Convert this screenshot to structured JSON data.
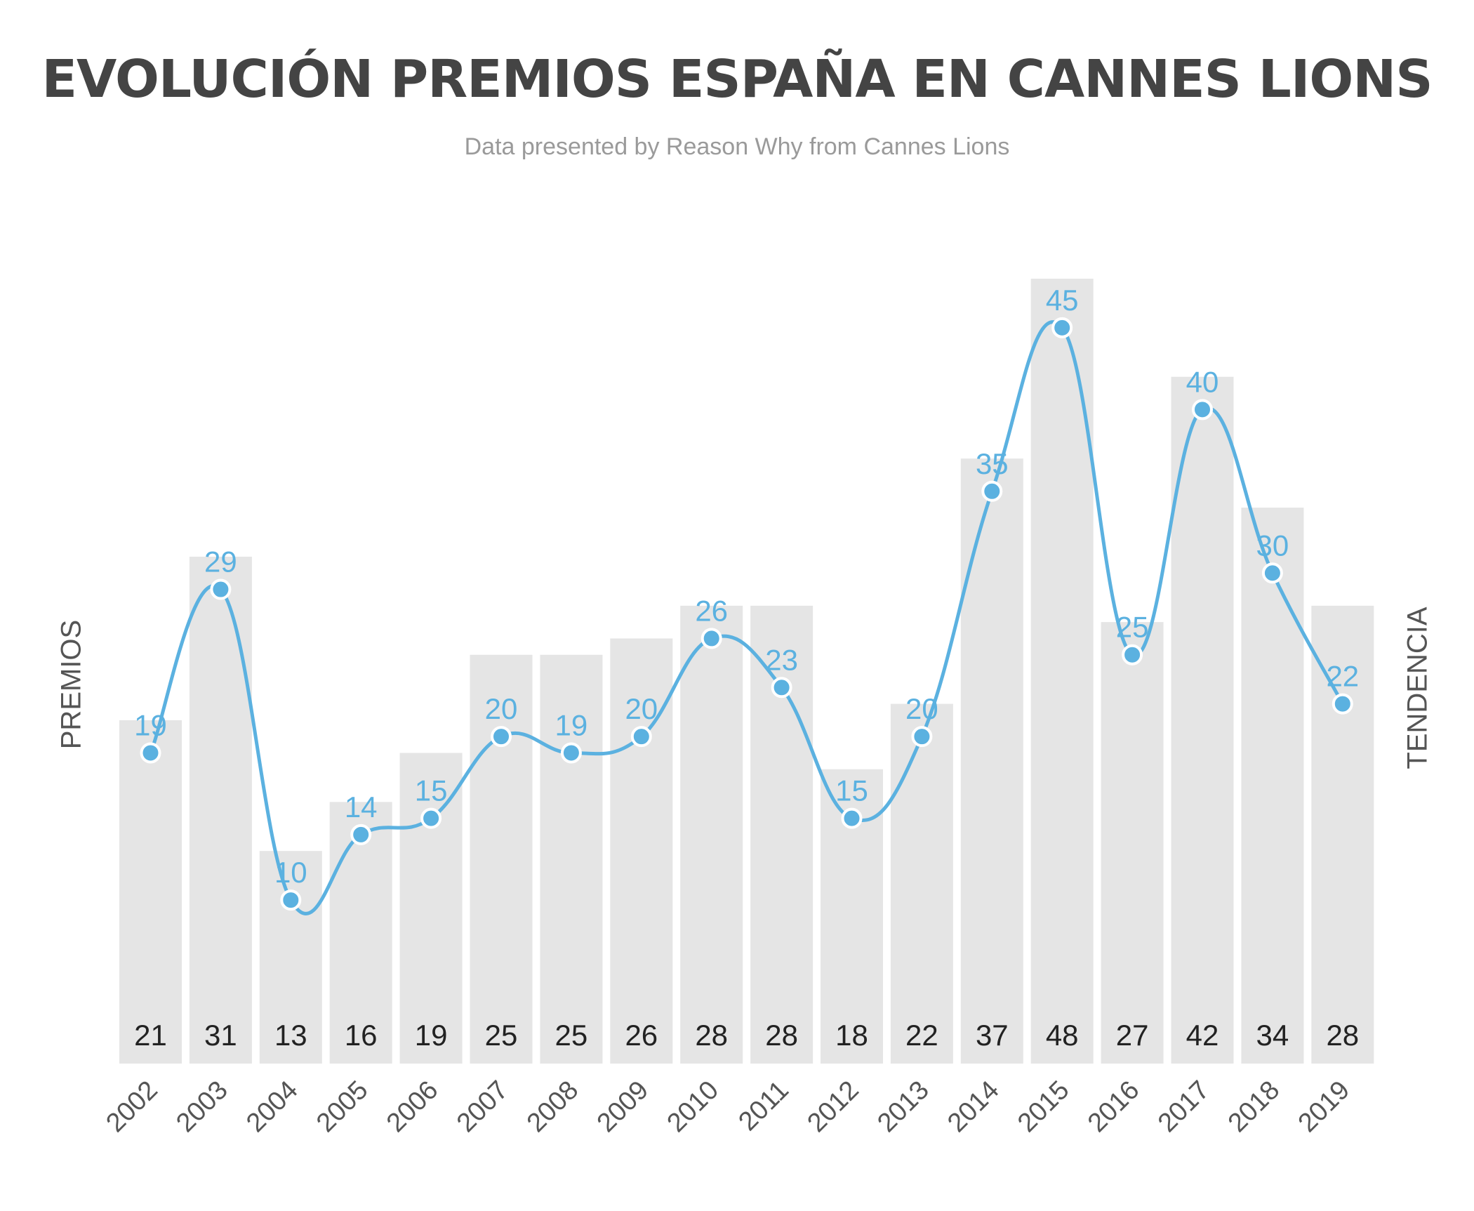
{
  "chart_data": {
    "type": "bar",
    "title": "EVOLUCIÓN PREMIOS ESPAÑA EN CANNES LIONS",
    "subtitle": "Data presented by Reason Why from Cannes Lions",
    "ylabel": "PREMIOS",
    "y2label": "TENDENCIA",
    "categories": [
      "2002",
      "2003",
      "2004",
      "2005",
      "2006",
      "2007",
      "2008",
      "2009",
      "2010",
      "2011",
      "2012",
      "2013",
      "2014",
      "2015",
      "2016",
      "2017",
      "2018",
      "2019"
    ],
    "series": [
      {
        "type": "bar",
        "color": "#e5e5e5",
        "values": [
          21,
          31,
          13,
          16,
          19,
          25,
          25,
          26,
          28,
          28,
          18,
          22,
          37,
          48,
          27,
          42,
          34,
          28
        ]
      },
      {
        "type": "line",
        "color": "#5bb1e0",
        "values": [
          19,
          29,
          10,
          14,
          15,
          20,
          19,
          20,
          26,
          23,
          15,
          20,
          35,
          45,
          25,
          40,
          30,
          22
        ]
      }
    ],
    "ylim": [
      0,
      48
    ],
    "grid": false,
    "legend": "none"
  }
}
